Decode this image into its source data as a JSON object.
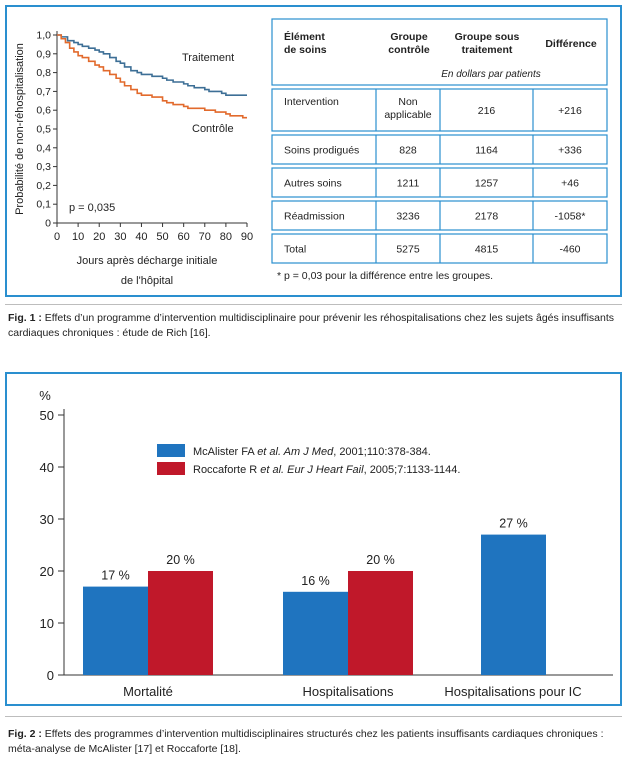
{
  "fig1": {
    "chart_data": {
      "type": "line",
      "ylabel": "Probabilité de non-réhospitalisation",
      "xlabel_line1": "Jours après décharge initiale",
      "xlabel_line2": "de l'hôpital",
      "xlim": [
        0,
        90
      ],
      "ylim": [
        0,
        1.0
      ],
      "x_ticks": [
        0,
        10,
        20,
        30,
        40,
        50,
        60,
        70,
        80,
        90
      ],
      "y_ticks": [
        "0",
        "0,1",
        "0,2",
        "0,3",
        "0,4",
        "0,5",
        "0,6",
        "0,7",
        "0,8",
        "0,9",
        "1,0"
      ],
      "pvalue": "p = 0,035",
      "series": [
        {
          "name": "Traitement",
          "color": "#3d6f96",
          "x": [
            0,
            2,
            5,
            8,
            10,
            12,
            15,
            18,
            20,
            22,
            25,
            28,
            30,
            32,
            35,
            38,
            40,
            45,
            50,
            52,
            55,
            60,
            62,
            65,
            70,
            72,
            75,
            78,
            80,
            85,
            90
          ],
          "y": [
            1.0,
            0.99,
            0.97,
            0.96,
            0.95,
            0.94,
            0.93,
            0.92,
            0.91,
            0.9,
            0.88,
            0.86,
            0.85,
            0.83,
            0.81,
            0.8,
            0.79,
            0.78,
            0.77,
            0.76,
            0.75,
            0.74,
            0.73,
            0.72,
            0.71,
            0.7,
            0.7,
            0.69,
            0.68,
            0.68,
            0.68
          ]
        },
        {
          "name": "Contrôle",
          "color": "#e26a2c",
          "x": [
            0,
            2,
            4,
            6,
            8,
            10,
            12,
            15,
            18,
            20,
            22,
            25,
            28,
            30,
            32,
            35,
            38,
            40,
            45,
            50,
            52,
            55,
            60,
            62,
            65,
            70,
            75,
            80,
            82,
            85,
            88,
            90
          ],
          "y": [
            1.0,
            0.98,
            0.96,
            0.93,
            0.91,
            0.89,
            0.88,
            0.86,
            0.84,
            0.83,
            0.81,
            0.79,
            0.77,
            0.75,
            0.73,
            0.71,
            0.69,
            0.68,
            0.67,
            0.65,
            0.64,
            0.63,
            0.62,
            0.61,
            0.61,
            0.6,
            0.59,
            0.58,
            0.57,
            0.57,
            0.56,
            0.56
          ]
        }
      ]
    },
    "table": {
      "headers": [
        "Élément\nde soins",
        "Groupe\ncontrôle",
        "Groupe sous\ntraitement",
        "Différence"
      ],
      "subheader": "En dollars par patients",
      "rows": [
        [
          "Intervention",
          "Non\napplicable",
          "216",
          "+216"
        ],
        [
          "Soins prodigués",
          "828",
          "1164",
          "+336"
        ],
        [
          "Autres soins",
          "1211",
          "1257",
          "+46"
        ],
        [
          "Réadmission",
          "3236",
          "2178",
          "-1058*"
        ],
        [
          "Total",
          "5275",
          "4815",
          "-460"
        ]
      ],
      "footnote": "* p = 0,03 pour la différence entre les groupes."
    },
    "caption_label": "Fig. 1 :",
    "caption_text": " Effets d’un programme d’intervention multidisciplinaire pour prévenir les réhospitalisations chez les sujets âgés insuffisants cardiaques chroniques : étude de Rich [16]."
  },
  "fig2": {
    "chart_data": {
      "type": "bar",
      "ylabel": "%",
      "ylim": [
        0,
        50
      ],
      "y_ticks": [
        "0",
        "10",
        "20",
        "30",
        "40",
        "50"
      ],
      "categories": [
        "Mortalité",
        "Hospitalisations",
        "Hospitalisations pour IC"
      ],
      "series": [
        {
          "name": "McAlister FA et al. Am J Med, 2001;110:378-384.",
          "color": "#1f74bf",
          "values": [
            17,
            16,
            27
          ],
          "labels": [
            "17 %",
            "16 %",
            "27 %"
          ]
        },
        {
          "name": "Roccaforte R et al. Eur J Heart Fail, 2005;7:1133-1144.",
          "color": "#c0182a",
          "values": [
            20,
            20,
            null
          ],
          "labels": [
            "20 %",
            "20 %",
            ""
          ]
        }
      ]
    },
    "legend": [
      {
        "author": "McAlister FA ",
        "etal": "et al. Am J Med",
        "ref": ", 2001;110:378-384."
      },
      {
        "author": "Roccaforte R ",
        "etal": "et al. Eur J Heart Fail",
        "ref": ", 2005;7:1133-1144."
      }
    ],
    "caption_label": "Fig. 2 :",
    "caption_text": " Effets des programmes d’intervention multidisciplinaires structurés chez les patients insuffisants cardiaques chroniques : méta-analyse de McAlister [17] et Roccaforte [18]."
  }
}
